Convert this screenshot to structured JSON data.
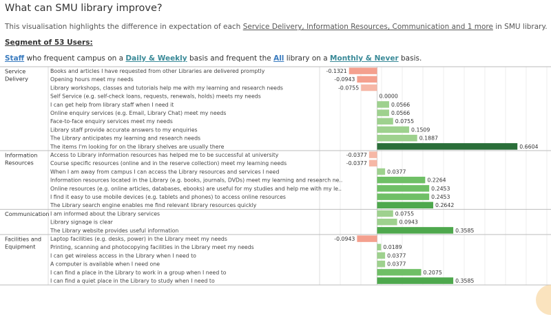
{
  "header": {
    "title": "What can SMU library improve?",
    "desc_prefix": "This visualisation highlights the difference in expectation of each ",
    "desc_link": "Service Delivery, Information Resources, Communication and 1 more",
    "desc_suffix": " in SMU library.",
    "segment": "Segment of 53 Users:",
    "filter": {
      "w1": "Staff",
      "t1": " who frequent campus on a ",
      "w2": "Daily & Weekly",
      "t2": " basis and frequent the ",
      "w3": "All",
      "t3": " library on a ",
      "w4": "Monthly & Never",
      "t4": " basis."
    }
  },
  "colors": {
    "negative": "#f4a08e",
    "neg_light": "#f6b7a6",
    "pos_light": "#9ed18e",
    "pos_mid": "#6fbf66",
    "pos_strong": "#4ea84d",
    "pos_dark": "#2a6e39"
  },
  "chart_data": {
    "type": "bar",
    "orientation": "horizontal",
    "groups": [
      {
        "name": "Service Delivery",
        "items": [
          {
            "label": "Books and articles I have requested from other Libraries are delivered promptly",
            "value": -0.1321
          },
          {
            "label": "Opening hours meet my needs",
            "value": -0.0943
          },
          {
            "label": "Library workshops, classes and tutorials help me with my learning and research needs",
            "value": -0.0755
          },
          {
            "label": "Self Service (e.g. self-check loans, requests, renewals, holds) meets my needs",
            "value": 0.0
          },
          {
            "label": "I can get help from library staff when I need it",
            "value": 0.0566
          },
          {
            "label": "Online enquiry services (e.g. Email, Library Chat) meet my needs",
            "value": 0.0566
          },
          {
            "label": "Face-to-face enquiry services meet my needs",
            "value": 0.0755
          },
          {
            "label": "Library staff provide accurate answers to my enquiries",
            "value": 0.1509
          },
          {
            "label": "The Library anticipates my learning and research needs",
            "value": 0.1887
          },
          {
            "label": "The items I'm looking for on the library shelves are usually there",
            "value": 0.6604
          }
        ]
      },
      {
        "name": "Information Resources",
        "items": [
          {
            "label": "Access to Library information resources has helped me to be successful at university",
            "value": -0.0377
          },
          {
            "label": "Course specific resources (online and in the reserve collection) meet my learning needs",
            "value": -0.0377
          },
          {
            "label": "When I am away from campus I can access the Library resources and services I need",
            "value": 0.0377
          },
          {
            "label": "Information resources located in the Library (e.g. books, journals, DVDs) meet my learning and research ne..",
            "value": 0.2264
          },
          {
            "label": "Online resources (e.g. online articles, databases, ebooks) are useful for my studies and help me with my le..",
            "value": 0.2453
          },
          {
            "label": "I find it easy to use mobile devices (e.g. tablets and phones) to access online resources",
            "value": 0.2453
          },
          {
            "label": "The Library search engine enables me find relevant library resources quickly",
            "value": 0.2642
          }
        ]
      },
      {
        "name": "Communication",
        "items": [
          {
            "label": "I am informed about the Library services",
            "value": 0.0755
          },
          {
            "label": "Library signage is clear",
            "value": 0.0943
          },
          {
            "label": "The Library website provides useful information",
            "value": 0.3585
          }
        ]
      },
      {
        "name": "Facilities and Equipment",
        "items": [
          {
            "label": "Laptop facilities (e.g. desks, power) in the Library meet my needs",
            "value": -0.0943
          },
          {
            "label": "Printing, scanning and photocopying facilities in the Library meet my needs",
            "value": 0.0189
          },
          {
            "label": "I can get wireless access in the Library when I need to",
            "value": 0.0377
          },
          {
            "label": "A computer is available when I need one",
            "value": 0.0377
          },
          {
            "label": "I can find a place in the Library to work in a group when I need to",
            "value": 0.2075
          },
          {
            "label": "I can find a quiet place in the Library to study when I need to",
            "value": 0.3585
          }
        ]
      }
    ]
  }
}
